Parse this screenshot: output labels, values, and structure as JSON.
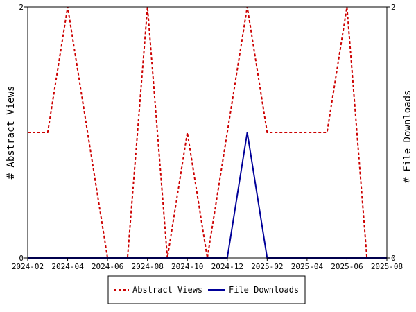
{
  "chart_data": {
    "type": "line",
    "title": "",
    "xlabel": "",
    "ylabel_left": "# Abstract Views",
    "ylabel_right": "# File Downloads",
    "x_ticks": [
      "2024-02",
      "2024-04",
      "2024-06",
      "2024-08",
      "2024-10",
      "2024-12",
      "2025-02",
      "2025-04",
      "2025-06",
      "2025-08"
    ],
    "x": [
      "2024-02",
      "2024-03",
      "2024-04",
      "2024-05",
      "2024-06",
      "2024-07",
      "2024-08",
      "2024-09",
      "2024-10",
      "2024-11",
      "2024-12",
      "2025-01",
      "2025-02",
      "2025-03",
      "2025-04",
      "2025-05",
      "2025-06",
      "2025-07",
      "2025-08"
    ],
    "ylim_left": [
      0,
      2
    ],
    "ylim_right": [
      0,
      2
    ],
    "y_ticks_left": [
      "0",
      "2"
    ],
    "y_ticks_right": [
      "0",
      "2"
    ],
    "series": [
      {
        "name": "Abstract Views",
        "axis": "left",
        "color": "#cc0000",
        "style": "dashed",
        "values": [
          1,
          1,
          2,
          1,
          0,
          0,
          2,
          0,
          1,
          0,
          1,
          2,
          1,
          1,
          1,
          1,
          2,
          0,
          0
        ]
      },
      {
        "name": "File Downloads",
        "axis": "right",
        "color": "#000099",
        "style": "solid",
        "values": [
          0,
          0,
          0,
          0,
          0,
          0,
          0,
          0,
          0,
          0,
          0,
          1,
          0,
          0,
          0,
          0,
          0,
          0,
          0
        ]
      }
    ],
    "grid": false,
    "legend_position": "bottom"
  }
}
